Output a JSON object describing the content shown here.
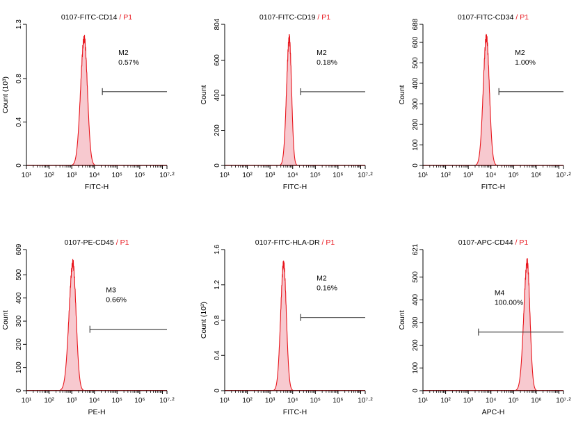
{
  "colors": {
    "peak_line": "#e8141b",
    "peak_fill": "#f7c9cf",
    "gate_label": "#e8141b",
    "axis": "#000000",
    "text": "#000000"
  },
  "chart_data": [
    {
      "type": "histogram",
      "title_main": "0107-FITC-CD14",
      "title_sep": " / ",
      "title_gate": "P1",
      "xlabel": "FITC-H",
      "ylabel": "Count (10³)",
      "x_log_range": [
        1,
        7.2
      ],
      "ylim": [
        0,
        1.3
      ],
      "y_ticks": [
        0,
        0.4,
        0.8,
        1.3
      ],
      "y_tick_labels": [
        "0",
        "0.4",
        "0.8",
        "1.3"
      ],
      "x_tick_labels": [
        "10¹",
        "10²",
        "10³",
        "10⁴",
        "10⁵",
        "10⁶",
        "10⁷·²"
      ],
      "peak": {
        "center_log": 3.55,
        "height": 1.17,
        "sigma_left": 0.16,
        "sigma_right": 0.14
      },
      "marker": {
        "name": "M2",
        "percent": "0.57%",
        "start_log": 4.35,
        "end_log": 7.2,
        "y_value": 0.68
      }
    },
    {
      "type": "histogram",
      "title_main": "0107-FITC-CD19",
      "title_sep": " / ",
      "title_gate": "P1",
      "xlabel": "FITC-H",
      "ylabel": "Count",
      "x_log_range": [
        1,
        7.2
      ],
      "ylim": [
        0,
        804
      ],
      "y_ticks": [
        0,
        200,
        400,
        600,
        804
      ],
      "y_tick_labels": [
        "0",
        "200",
        "400",
        "600",
        "804"
      ],
      "x_tick_labels": [
        "10¹",
        "10²",
        "10³",
        "10⁴",
        "10⁵",
        "10⁶",
        "10⁷·²"
      ],
      "peak": {
        "center_log": 3.85,
        "height": 725,
        "sigma_left": 0.12,
        "sigma_right": 0.1
      },
      "marker": {
        "name": "M2",
        "percent": "0.18%",
        "start_log": 4.35,
        "end_log": 7.2,
        "y_value": 420
      }
    },
    {
      "type": "histogram",
      "title_main": "0107-FITC-CD34",
      "title_sep": " / ",
      "title_gate": "P1",
      "xlabel": "FITC-H",
      "ylabel": "Count",
      "x_log_range": [
        1,
        7.2
      ],
      "ylim": [
        0,
        688
      ],
      "y_ticks": [
        0,
        100,
        200,
        300,
        400,
        500,
        600,
        688
      ],
      "y_tick_labels": [
        "0",
        "100",
        "200",
        "300",
        "400",
        "500",
        "600",
        "688"
      ],
      "x_tick_labels": [
        "10¹",
        "10²",
        "10³",
        "10⁴",
        "10⁵",
        "10⁶",
        "10⁷·²"
      ],
      "peak": {
        "center_log": 3.8,
        "height": 625,
        "sigma_left": 0.14,
        "sigma_right": 0.13
      },
      "marker": {
        "name": "M2",
        "percent": "1.00%",
        "start_log": 4.35,
        "end_log": 7.2,
        "y_value": 360
      }
    },
    {
      "type": "histogram",
      "title_main": "0107-PE-CD45",
      "title_sep": " / ",
      "title_gate": "P1",
      "xlabel": "PE-H",
      "ylabel": "Count",
      "x_log_range": [
        1,
        7.2
      ],
      "ylim": [
        0,
        609
      ],
      "y_ticks": [
        0,
        100,
        200,
        300,
        400,
        500,
        609
      ],
      "y_tick_labels": [
        "0",
        "100",
        "200",
        "300",
        "400",
        "500",
        "609"
      ],
      "x_tick_labels": [
        "10¹",
        "10²",
        "10³",
        "10⁴",
        "10⁵",
        "10⁶",
        "10⁷·²"
      ],
      "peak": {
        "center_log": 3.05,
        "height": 550,
        "sigma_left": 0.17,
        "sigma_right": 0.14
      },
      "marker": {
        "name": "M3",
        "percent": "0.66%",
        "start_log": 3.8,
        "end_log": 7.2,
        "y_value": 265
      }
    },
    {
      "type": "histogram",
      "title_main": "0107-FITC-HLA-DR",
      "title_sep": " / ",
      "title_gate": "P1",
      "xlabel": "FITC-H",
      "ylabel": "Count (10³)",
      "x_log_range": [
        1,
        7.2
      ],
      "ylim": [
        0,
        1.6
      ],
      "y_ticks": [
        0,
        0.4,
        0.8,
        1.2,
        1.6
      ],
      "y_tick_labels": [
        "0",
        "0.4",
        "0.8",
        "1.2",
        "1.6"
      ],
      "x_tick_labels": [
        "10¹",
        "10²",
        "10³",
        "10⁴",
        "10⁵",
        "10⁶",
        "10⁷·²"
      ],
      "peak": {
        "center_log": 3.6,
        "height": 1.44,
        "sigma_left": 0.13,
        "sigma_right": 0.12
      },
      "marker": {
        "name": "M2",
        "percent": "0.16%",
        "start_log": 4.35,
        "end_log": 7.2,
        "y_value": 0.83
      }
    },
    {
      "type": "histogram",
      "title_main": "0107-APC-CD44",
      "title_sep": " / ",
      "title_gate": "P1",
      "xlabel": "APC-H",
      "ylabel": "Count",
      "x_log_range": [
        1,
        7.2
      ],
      "ylim": [
        0,
        621
      ],
      "y_ticks": [
        0,
        100,
        200,
        300,
        400,
        500,
        621
      ],
      "y_tick_labels": [
        "0",
        "100",
        "200",
        "300",
        "400",
        "500",
        "621"
      ],
      "x_tick_labels": [
        "10¹",
        "10²",
        "10³",
        "10⁴",
        "10⁵",
        "10⁶",
        "10⁷·²"
      ],
      "peak": {
        "center_log": 5.6,
        "height": 565,
        "sigma_left": 0.15,
        "sigma_right": 0.12
      },
      "marker": {
        "name": "M4",
        "percent": "100.00%",
        "start_log": 3.45,
        "end_log": 7.2,
        "y_value": 258
      }
    }
  ]
}
